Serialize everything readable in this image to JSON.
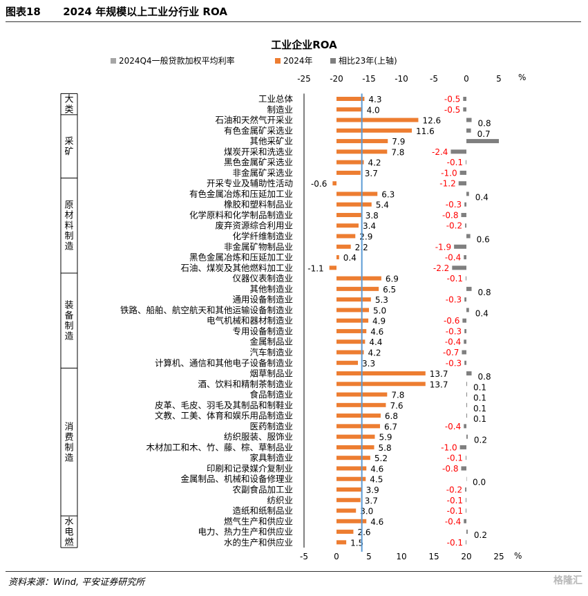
{
  "header": {
    "figure_no": "图表18",
    "title": "2024 年规模以上工业分行业 ROA"
  },
  "source": "资料来源：Wind, 平安证券研究所",
  "watermark": "格隆汇",
  "chart_data": {
    "type": "bar",
    "title": "工业企业ROA",
    "top_axis": {
      "min": -25,
      "max": 5,
      "ticks": [
        -25,
        -20,
        -15,
        -10,
        -5,
        0,
        5
      ],
      "unit": "%"
    },
    "bottom_axis": {
      "min": -5,
      "max": 25,
      "ticks": [
        -5,
        0,
        5,
        10,
        15,
        20,
        25
      ],
      "unit": "%"
    },
    "reference_line": {
      "name": "2024Q4一般贷款加权平均利率",
      "value": 3.9,
      "color": "#5b9bd5"
    },
    "legend": [
      {
        "name": "2024Q4一般贷款加权平均利率",
        "color": "#a5a5a5"
      },
      {
        "name": "2024年",
        "color": "#ed7d31"
      },
      {
        "name": "相比23年(上轴)",
        "color": "#7f7f7f"
      }
    ],
    "colors": {
      "roa": "#ed7d31",
      "change": "#7f7f7f",
      "loan_rate": "#a5a5a5",
      "negative_label": "#ff0000"
    },
    "groups": [
      {
        "name": "大类",
        "start": 0,
        "end": 1
      },
      {
        "name": "采矿",
        "start": 2,
        "end": 7
      },
      {
        "name": "原材料制造",
        "start": 8,
        "end": 16
      },
      {
        "name": "装备制造",
        "start": 17,
        "end": 25
      },
      {
        "name": "消费制造",
        "start": 26,
        "end": 39
      },
      {
        "name": "水电燃",
        "start": 40,
        "end": 42
      }
    ],
    "categories": [
      "工业总体",
      "制造业",
      "石油和天然气开采业",
      "有色金属矿采选业",
      "其他采矿业",
      "煤炭开采和洗选业",
      "黑色金属矿采选业",
      "非金属矿采选业",
      "开采专业及辅助性活动",
      "有色金属冶炼和压延加工业",
      "橡胶和塑料制品业",
      "化学原料和化学制品制造业",
      "废弃资源综合利用业",
      "化学纤维制造业",
      "非金属矿物制品业",
      "黑色金属冶炼和压延加工业",
      "石油、煤炭及其他燃料加工业",
      "仪器仪表制造业",
      "其他制造业",
      "通用设备制造业",
      "铁路、船舶、航空航天和其他运输设备制造业",
      "电气机械和器材制造业",
      "专用设备制造业",
      "金属制品业",
      "汽车制造业",
      "计算机、通信和其他电子设备制造业",
      "烟草制品业",
      "酒、饮料和精制茶制造业",
      "食品制造业",
      "皮革、毛皮、羽毛及其制品和制鞋业",
      "文教、工美、体育和娱乐用品制造业",
      "医药制造业",
      "纺织服装、服饰业",
      "木材加工和木、竹、藤、棕、草制品业",
      "家具制造业",
      "印刷和记录媒介复制业",
      "金属制品、机械和设备修理业",
      "农副食品加工业",
      "纺织业",
      "造纸和纸制品业",
      "燃气生产和供应业",
      "电力、热力生产和供应业",
      "水的生产和供应业"
    ],
    "series": [
      {
        "name": "2024年",
        "axis": "bottom",
        "values": [
          4.3,
          4.0,
          12.6,
          11.6,
          7.9,
          7.8,
          4.2,
          3.7,
          -0.6,
          6.3,
          5.4,
          3.8,
          3.4,
          2.9,
          2.2,
          0.4,
          -1.1,
          6.9,
          6.5,
          5.3,
          5.0,
          4.9,
          4.6,
          4.4,
          4.2,
          3.3,
          13.7,
          13.7,
          7.8,
          7.6,
          6.8,
          6.7,
          5.9,
          5.8,
          5.2,
          4.6,
          4.5,
          3.9,
          3.7,
          3.0,
          4.6,
          2.6,
          1.5
        ]
      },
      {
        "name": "相比23年(上轴)",
        "axis": "top",
        "values": [
          -0.5,
          -0.5,
          0.8,
          0.7,
          5.0,
          -2.4,
          -0.1,
          -1.0,
          -1.2,
          0.4,
          -0.3,
          -0.8,
          -0.2,
          0.6,
          -1.9,
          -0.4,
          -2.2,
          -0.1,
          0.8,
          -0.3,
          0.4,
          -0.6,
          -0.3,
          -0.4,
          -0.7,
          -0.3,
          0.8,
          0.1,
          0.1,
          0.1,
          0.1,
          -0.4,
          0.2,
          -1.0,
          -0.1,
          -0.8,
          0.0,
          -0.2,
          -0.1,
          -0.1,
          -0.4,
          0.2,
          -0.1
        ]
      }
    ],
    "change_labels": [
      "-0.5",
      "-0.5",
      "0.8",
      "0.7",
      "",
      "-2.4",
      "-0.1",
      "-1.0",
      "-1.2",
      "0.4",
      "-0.3",
      "-0.8",
      "-0.2",
      "0.6",
      "-1.9",
      "-0.4",
      "-2.2",
      "-0.1",
      "0.8",
      "-0.3",
      "0.4",
      "-0.6",
      "-0.3",
      "-0.4",
      "-0.7",
      "-0.3",
      "0.8",
      "0.1",
      "0.1",
      "0.1",
      "0.1",
      "-0.4",
      "0.2",
      "-1.0",
      "-0.1",
      "-0.8",
      "0.0",
      "-0.2",
      "-0.1",
      "-0.1",
      "-0.4",
      "0.2",
      "-0.1"
    ]
  }
}
